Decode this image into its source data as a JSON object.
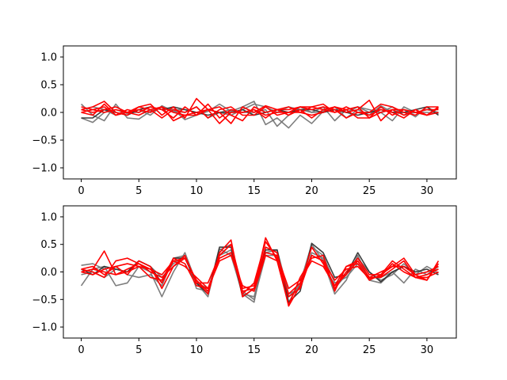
{
  "chart_data": [
    {
      "type": "line",
      "title": "",
      "xlabel": "",
      "ylabel": "",
      "xlim": [
        -1.55,
        32.55
      ],
      "ylim": [
        -1.2,
        1.2
      ],
      "x_ticks": [
        0,
        5,
        10,
        15,
        20,
        25,
        30
      ],
      "x_tick_labels": [
        "0",
        "5",
        "10",
        "15",
        "20",
        "25",
        "30"
      ],
      "y_ticks": [
        -1.0,
        -0.5,
        0.0,
        0.5,
        1.0
      ],
      "y_tick_labels": [
        "−1.0",
        "−0.5",
        "0.0",
        "0.5",
        "1.0"
      ],
      "grid": false,
      "x": [
        0,
        1,
        2,
        3,
        4,
        5,
        6,
        7,
        8,
        9,
        10,
        11,
        12,
        13,
        14,
        15,
        16,
        17,
        18,
        19,
        20,
        21,
        22,
        23,
        24,
        25,
        26,
        27,
        28,
        29,
        30,
        31
      ],
      "series": [
        {
          "color": "#777777",
          "values": [
            0.15,
            -0.05,
            -0.15,
            0.15,
            -0.1,
            -0.12,
            0.02,
            0.1,
            0.05,
            -0.13,
            -0.05,
            0.02,
            0.15,
            0.02,
            0.1,
            0.2,
            -0.22,
            -0.1,
            -0.28,
            -0.05,
            -0.2,
            0.02,
            0.1,
            -0.1,
            0.05,
            -0.05,
            0.12,
            0.0,
            0.05,
            -0.08,
            0.1,
            -0.02
          ]
        },
        {
          "color": "#777777",
          "values": [
            -0.1,
            -0.18,
            0.0,
            0.05,
            -0.02,
            0.05,
            -0.05,
            0.12,
            0.02,
            0.0,
            0.1,
            -0.1,
            0.0,
            0.05,
            0.0,
            0.0,
            0.05,
            -0.25,
            -0.05,
            0.1,
            0.0,
            0.1,
            -0.15,
            0.05,
            0.1,
            0.0,
            0.0,
            -0.15,
            0.1,
            0.0,
            0.05,
            0.0
          ]
        },
        {
          "color": "#777777",
          "values": [
            0.05,
            0.1,
            0.05,
            -0.05,
            0.0,
            0.0,
            0.1,
            0.05,
            0.05,
            0.05,
            0.0,
            0.05,
            0.0,
            -0.05,
            0.05,
            0.15,
            0.1,
            0.0,
            0.1,
            0.05,
            0.0,
            0.0,
            0.05,
            0.0,
            0.1,
            0.05,
            0.0,
            0.1,
            -0.05,
            0.0,
            0.0,
            -0.02
          ]
        },
        {
          "color": "#333333",
          "values": [
            -0.1,
            -0.1,
            0.05,
            0.0,
            -0.05,
            0.05,
            0.1,
            0.05,
            0.1,
            0.05,
            0.0,
            -0.05,
            0.0,
            0.0,
            0.05,
            -0.05,
            0.0,
            0.05,
            0.0,
            0.05,
            0.05,
            0.0,
            0.05,
            0.0,
            -0.05,
            0.0,
            0.05,
            0.0,
            0.0,
            0.05,
            0.1,
            -0.05
          ]
        },
        {
          "color": "#ff0000",
          "values": [
            0.05,
            0.1,
            0.2,
            0.0,
            -0.05,
            0.1,
            0.15,
            -0.05,
            0.1,
            -0.1,
            0.25,
            0.05,
            0.0,
            -0.2,
            0.1,
            0.0,
            0.12,
            0.05,
            0.1,
            0.0,
            0.1,
            0.15,
            0.0,
            0.1,
            0.0,
            0.0,
            0.15,
            0.1,
            0.0,
            -0.05,
            0.1,
            0.1
          ]
        },
        {
          "color": "#ff0000",
          "values": [
            0.1,
            0.05,
            0.0,
            0.05,
            0.0,
            -0.05,
            0.05,
            0.1,
            0.0,
            -0.05,
            -0.05,
            0.15,
            -0.1,
            0.05,
            0.0,
            0.05,
            -0.1,
            0.05,
            0.05,
            0.1,
            0.1,
            0.05,
            0.0,
            0.05,
            0.1,
            -0.1,
            0.0,
            0.05,
            0.05,
            0.0,
            0.05,
            0.05
          ]
        },
        {
          "color": "#ff0000",
          "values": [
            0.0,
            0.05,
            0.1,
            -0.05,
            0.05,
            0.0,
            0.1,
            0.05,
            -0.1,
            0.1,
            -0.05,
            0.05,
            0.1,
            -0.05,
            -0.15,
            0.1,
            0.0,
            0.05,
            -0.05,
            0.05,
            -0.1,
            0.05,
            0.1,
            0.0,
            0.05,
            0.22,
            -0.15,
            0.05,
            -0.05,
            0.05,
            -0.05,
            0.0
          ]
        },
        {
          "color": "#ff0000",
          "values": [
            0.05,
            0.0,
            0.05,
            0.1,
            0.0,
            0.05,
            0.0,
            0.1,
            -0.15,
            -0.05,
            0.0,
            0.05,
            -0.2,
            0.0,
            0.0,
            0.05,
            -0.05,
            0.0,
            0.0,
            0.1,
            0.05,
            0.1,
            0.05,
            -0.1,
            0.0,
            -0.05,
            0.05,
            0.0,
            -0.1,
            0.05,
            -0.05,
            0.1
          ]
        },
        {
          "color": "#ff0000",
          "values": [
            0.0,
            -0.05,
            0.15,
            -0.05,
            0.0,
            0.1,
            0.05,
            -0.1,
            0.05,
            0.0,
            0.1,
            -0.1,
            0.05,
            0.1,
            -0.05,
            -0.05,
            0.1,
            -0.05,
            0.0,
            0.0,
            -0.05,
            0.0,
            0.1,
            0.05,
            -0.1,
            -0.1,
            0.1,
            -0.05,
            0.05,
            0.0,
            -0.05,
            0.08
          ]
        }
      ]
    },
    {
      "type": "line",
      "title": "",
      "xlabel": "",
      "ylabel": "",
      "xlim": [
        -1.55,
        32.55
      ],
      "ylim": [
        -1.2,
        1.2
      ],
      "x_ticks": [
        0,
        5,
        10,
        15,
        20,
        25,
        30
      ],
      "x_tick_labels": [
        "0",
        "5",
        "10",
        "15",
        "20",
        "25",
        "30"
      ],
      "y_ticks": [
        -1.0,
        -0.5,
        0.0,
        0.5,
        1.0
      ],
      "y_tick_labels": [
        "−1.0",
        "−0.5",
        "0.0",
        "0.5",
        "1.0"
      ],
      "grid": false,
      "x": [
        0,
        1,
        2,
        3,
        4,
        5,
        6,
        7,
        8,
        9,
        10,
        11,
        12,
        13,
        14,
        15,
        16,
        17,
        18,
        19,
        20,
        21,
        22,
        23,
        24,
        25,
        26,
        27,
        28,
        29,
        30,
        31
      ],
      "series": [
        {
          "color": "#777777",
          "values": [
            -0.25,
            0.05,
            0.1,
            -0.25,
            -0.2,
            0.1,
            0.0,
            -0.45,
            0.0,
            0.35,
            -0.2,
            -0.45,
            0.42,
            0.3,
            -0.4,
            -0.55,
            0.45,
            0.35,
            -0.55,
            -0.2,
            0.5,
            0.2,
            -0.4,
            -0.15,
            0.3,
            -0.15,
            -0.2,
            0.0,
            -0.2,
            0.05,
            -0.05,
            0.1
          ]
        },
        {
          "color": "#777777",
          "values": [
            0.12,
            0.15,
            0.05,
            0.1,
            -0.05,
            -0.1,
            -0.05,
            -0.25,
            0.25,
            0.3,
            -0.3,
            -0.35,
            0.4,
            0.5,
            -0.4,
            -0.45,
            0.35,
            0.4,
            -0.4,
            -0.3,
            0.35,
            0.25,
            -0.3,
            -0.05,
            0.25,
            0.0,
            -0.15,
            -0.05,
            0.15,
            -0.05,
            0.1,
            -0.02
          ]
        },
        {
          "color": "#777777",
          "values": [
            -0.05,
            0.0,
            -0.1,
            0.05,
            0.0,
            0.2,
            0.1,
            -0.1,
            0.15,
            0.3,
            -0.2,
            -0.3,
            0.3,
            0.4,
            -0.35,
            -0.5,
            0.3,
            0.3,
            -0.45,
            -0.25,
            0.45,
            0.3,
            -0.2,
            -0.1,
            0.15,
            -0.1,
            -0.1,
            0.0,
            0.1,
            -0.05,
            0.0,
            0.05
          ]
        },
        {
          "color": "#333333",
          "values": [
            0.05,
            -0.05,
            0.1,
            0.05,
            0.0,
            0.2,
            0.1,
            -0.2,
            0.25,
            0.25,
            -0.2,
            -0.4,
            0.45,
            0.45,
            -0.45,
            -0.3,
            0.4,
            0.4,
            -0.55,
            -0.35,
            0.52,
            0.35,
            -0.1,
            -0.05,
            0.35,
            0.0,
            -0.18,
            0.0,
            0.1,
            0.0,
            0.05,
            -0.05
          ]
        },
        {
          "color": "#ff0000",
          "values": [
            0.0,
            0.05,
            0.38,
            -0.05,
            0.0,
            0.1,
            0.05,
            -0.2,
            0.2,
            0.25,
            -0.15,
            -0.4,
            0.35,
            0.58,
            -0.45,
            -0.3,
            0.62,
            0.2,
            -0.6,
            -0.1,
            0.25,
            0.3,
            -0.35,
            0.1,
            0.2,
            -0.1,
            0.0,
            0.1,
            0.25,
            -0.05,
            -0.15,
            0.15
          ]
        },
        {
          "color": "#ff0000",
          "values": [
            0.05,
            0.0,
            -0.1,
            0.2,
            0.25,
            0.15,
            0.0,
            -0.1,
            0.1,
            0.3,
            -0.2,
            -0.2,
            0.3,
            0.5,
            -0.4,
            -0.2,
            0.55,
            0.25,
            -0.62,
            -0.25,
            0.45,
            0.15,
            -0.25,
            -0.05,
            0.2,
            -0.1,
            -0.1,
            0.05,
            0.2,
            -0.1,
            -0.1,
            0.0
          ]
        },
        {
          "color": "#ff0000",
          "values": [
            0.0,
            -0.05,
            0.05,
            0.1,
            -0.05,
            0.2,
            0.1,
            -0.3,
            0.1,
            0.25,
            -0.15,
            -0.35,
            0.3,
            0.5,
            -0.3,
            -0.25,
            0.45,
            0.35,
            -0.45,
            -0.3,
            0.3,
            0.2,
            -0.3,
            0.0,
            0.25,
            -0.05,
            -0.05,
            0.1,
            0.1,
            -0.05,
            0.0,
            0.1
          ]
        },
        {
          "color": "#ff0000",
          "values": [
            0.05,
            0.1,
            -0.05,
            0.1,
            0.15,
            0.1,
            -0.1,
            -0.15,
            0.25,
            0.15,
            -0.25,
            -0.3,
            0.25,
            0.35,
            -0.35,
            -0.3,
            0.35,
            0.3,
            -0.3,
            -0.15,
            0.2,
            0.1,
            -0.25,
            0.1,
            0.15,
            -0.15,
            -0.05,
            0.2,
            0.05,
            -0.1,
            -0.15,
            0.2
          ]
        },
        {
          "color": "#ff0000",
          "values": [
            0.0,
            0.05,
            0.0,
            -0.05,
            0.05,
            0.15,
            0.05,
            -0.05,
            0.2,
            0.1,
            -0.1,
            -0.3,
            0.2,
            0.3,
            -0.25,
            -0.35,
            0.3,
            0.2,
            -0.4,
            -0.2,
            0.3,
            0.2,
            -0.15,
            0.05,
            0.1,
            -0.12,
            -0.08,
            0.15,
            0.0,
            -0.1,
            -0.05,
            0.05
          ]
        }
      ]
    }
  ]
}
